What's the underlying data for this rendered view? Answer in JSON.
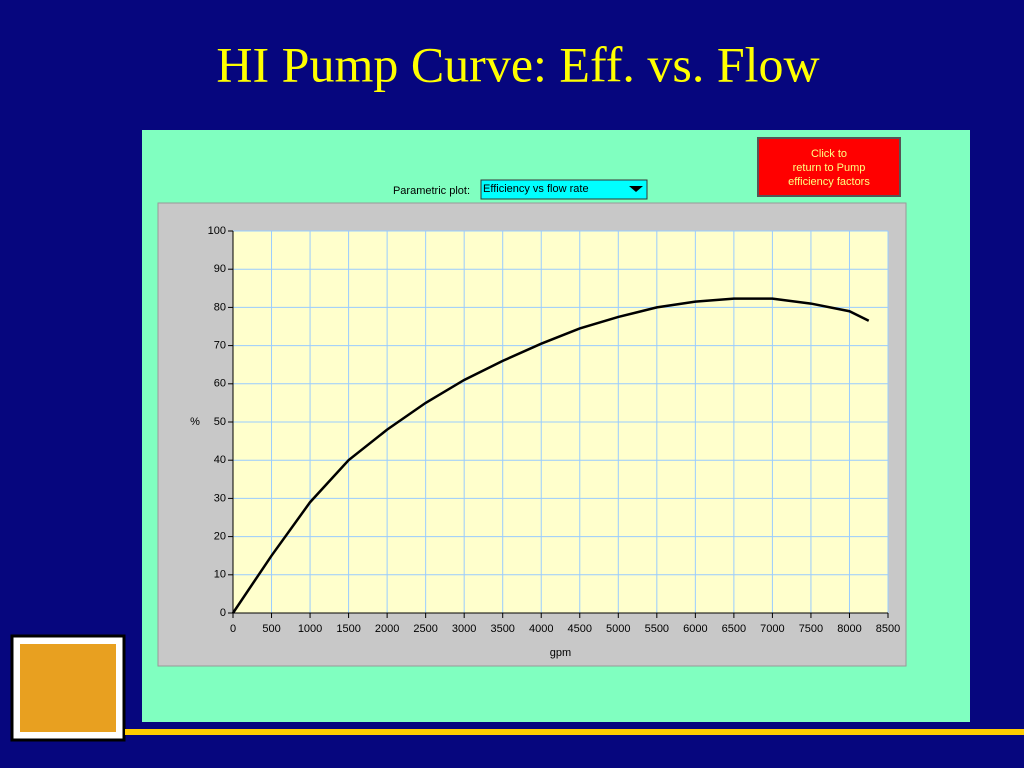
{
  "chart_data": {
    "type": "line",
    "title": "HI Pump Curve: Eff. vs. Flow",
    "x_label": "gpm",
    "y_label": "%",
    "x": [
      0,
      500,
      1000,
      1500,
      2000,
      2500,
      3000,
      3500,
      4000,
      4500,
      5000,
      5500,
      6000,
      6500,
      7000,
      7500,
      8000,
      8250
    ],
    "series": [
      {
        "name": "Efficiency",
        "color": "#000000",
        "values": [
          0,
          15,
          29,
          40,
          48,
          55,
          61,
          66,
          70.5,
          74.5,
          77.5,
          80,
          81.5,
          82.3,
          82.3,
          81,
          79,
          76.5
        ]
      }
    ],
    "xlim": [
      0,
      8500
    ],
    "xticks": [
      0,
      500,
      1000,
      1500,
      2000,
      2500,
      3000,
      3500,
      4000,
      4500,
      5000,
      5500,
      6000,
      6500,
      7000,
      7500,
      8000,
      8500
    ],
    "ylim": [
      0,
      100
    ],
    "yticks": [
      0,
      10,
      20,
      30,
      40,
      50,
      60,
      70,
      80,
      90,
      100
    ],
    "grid": true
  },
  "controls": {
    "parametric_label": "Parametric plot:",
    "dropdown_value": "Efficiency vs flow rate",
    "button_lines": [
      "Click to",
      "return to Pump",
      "efficiency factors"
    ]
  }
}
